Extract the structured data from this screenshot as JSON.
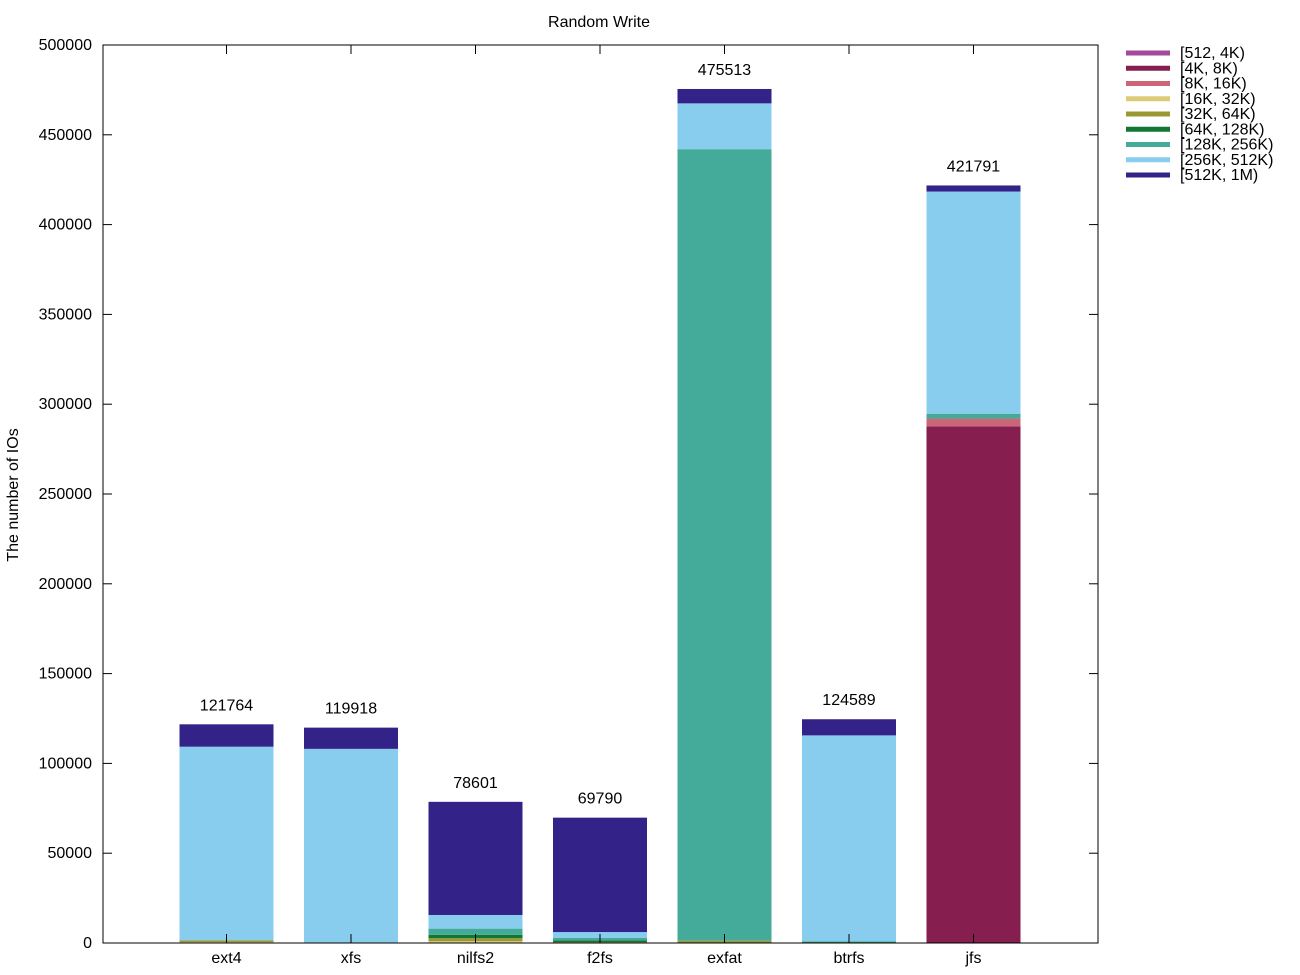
{
  "chart_data": {
    "type": "bar",
    "stacked": true,
    "title": "Random Write",
    "xlabel": "",
    "ylabel": "The number of IOs",
    "ylim": [
      0,
      500000
    ],
    "yticks": [
      0,
      50000,
      100000,
      150000,
      200000,
      250000,
      300000,
      350000,
      400000,
      450000,
      500000
    ],
    "legend_position": "top-right-outside",
    "categories": [
      "ext4",
      "xfs",
      "nilfs2",
      "f2fs",
      "exfat",
      "btrfs",
      "jfs"
    ],
    "totals": [
      121764,
      119918,
      78601,
      69790,
      475513,
      124589,
      421791
    ],
    "total_labels": [
      "121764",
      "119918",
      "78601",
      "69790",
      "475513",
      "124589",
      "421791"
    ],
    "series": [
      {
        "name": "[512, 4K)",
        "color": "#a5479b",
        "values": [
          0,
          0,
          0,
          0,
          0,
          0,
          0
        ]
      },
      {
        "name": "[4K, 8K)",
        "color": "#861e4f",
        "values": [
          0,
          0,
          0,
          0,
          0,
          0,
          287700
        ]
      },
      {
        "name": "[8K, 16K)",
        "color": "#cc6677",
        "values": [
          0,
          0,
          0,
          0,
          0,
          0,
          4300
        ]
      },
      {
        "name": "[16K, 32K)",
        "color": "#ddcc77",
        "values": [
          500,
          0,
          1000,
          0,
          0,
          0,
          0
        ]
      },
      {
        "name": "[32K, 64K)",
        "color": "#999933",
        "values": [
          1000,
          300,
          1700,
          500,
          1300,
          0,
          0
        ]
      },
      {
        "name": "[64K, 128K)",
        "color": "#117733",
        "values": [
          0,
          0,
          1800,
          1000,
          0,
          500,
          0
        ]
      },
      {
        "name": "[128K, 256K)",
        "color": "#44aa99",
        "values": [
          0,
          0,
          3500,
          1300,
          440700,
          500,
          2700
        ]
      },
      {
        "name": "[256K, 512K)",
        "color": "#88ccee",
        "values": [
          107800,
          107800,
          7600,
          3300,
          25500,
          114600,
          123700
        ]
      },
      {
        "name": "[512K, 1M)",
        "color": "#332288",
        "values": [
          12464,
          11818,
          63001,
          63690,
          8013,
          8989,
          3391
        ]
      }
    ]
  }
}
